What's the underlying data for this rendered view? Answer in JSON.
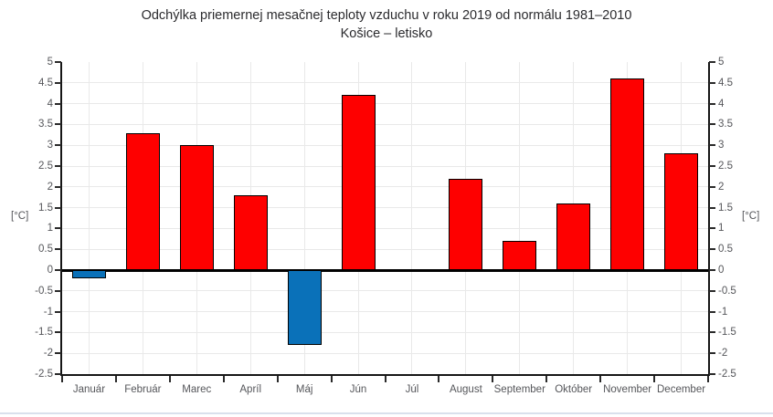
{
  "title": "Odchýlka priemernej mesačnej teploty vzduchu v roku 2019 od normálu 1981–2010",
  "subtitle": "Košice – letisko",
  "unit_label_left": "[°C]",
  "unit_label_right": "[°C]",
  "chart_data": {
    "type": "bar",
    "title": "Odchýlka priemernej mesačnej teploty vzduchu v roku 2019 od normálu 1981–2010",
    "subtitle": "Košice – letisko",
    "categories": [
      "Január",
      "Február",
      "Marec",
      "Apríl",
      "Máj",
      "Jún",
      "Júl",
      "August",
      "September",
      "Október",
      "November",
      "December"
    ],
    "values": [
      -0.2,
      3.3,
      3.0,
      1.8,
      -1.8,
      4.2,
      0.0,
      2.2,
      0.7,
      1.6,
      4.6,
      2.8
    ],
    "ylabel_left": "[°C]",
    "ylabel_right": "[°C]",
    "ylim": [
      -2.5,
      5
    ],
    "y_tick_step": 0.5,
    "y_tick_labels": [
      "5",
      "4.5",
      "4",
      "3.5",
      "3",
      "2.5",
      "2",
      "1.5",
      "1",
      "0.5",
      "0",
      "-0.5",
      "-1",
      "-1.5",
      "-2",
      "-2.5"
    ],
    "grid": true,
    "legend": false,
    "positive_color": "#fe0000",
    "negative_color": "#0a71b9",
    "bar_border_color": "#000000",
    "axis_color": "#161616",
    "grid_color": "#e9e9e9",
    "tick_label_color": "#55565a",
    "title_color": "#2b2b2e"
  }
}
